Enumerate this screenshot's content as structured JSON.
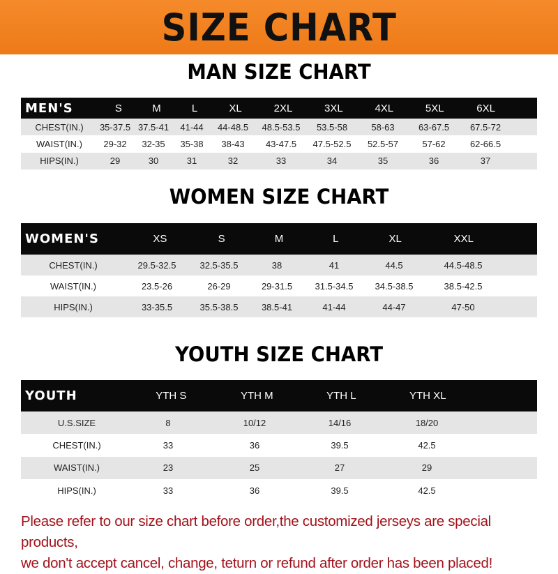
{
  "banner_title": "SIZE CHART",
  "tables": [
    {
      "title": "MAN SIZE CHART",
      "header": [
        "MEN'S",
        "S",
        "M",
        "L",
        "XL",
        "2XL",
        "3XL",
        "4XL",
        "5XL",
        "6XL"
      ],
      "rows": [
        [
          "CHEST(IN.)",
          "35-37.5",
          "37.5-41",
          "41-44",
          "44-48.5",
          "48.5-53.5",
          "53.5-58",
          "58-63",
          "63-67.5",
          "67.5-72"
        ],
        [
          "WAIST(IN.)",
          "29-32",
          "32-35",
          "35-38",
          "38-43",
          "43-47.5",
          "47.5-52.5",
          "52.5-57",
          "57-62",
          "62-66.5"
        ],
        [
          "HIPS(IN.)",
          "29",
          "30",
          "31",
          "32",
          "33",
          "34",
          "35",
          "36",
          "37"
        ]
      ]
    },
    {
      "title": "WOMEN SIZE CHART",
      "header": [
        "WOMEN'S",
        "XS",
        "S",
        "M",
        "L",
        "XL",
        "XXL"
      ],
      "rows": [
        [
          "CHEST(IN.)",
          "29.5-32.5",
          "32.5-35.5",
          "38",
          "41",
          "44.5",
          "44.5-48.5"
        ],
        [
          "WAIST(IN.)",
          "23.5-26",
          "26-29",
          "29-31.5",
          "31.5-34.5",
          "34.5-38.5",
          "38.5-42.5"
        ],
        [
          "HIPS(IN.)",
          "33-35.5",
          "35.5-38.5",
          "38.5-41",
          "41-44",
          "44-47",
          "47-50"
        ]
      ]
    },
    {
      "title": "YOUTH SIZE CHART",
      "header": [
        "YOUTH",
        "YTH S",
        "YTH M",
        "YTH L",
        "YTH XL"
      ],
      "rows": [
        [
          "U.S.SIZE",
          "8",
          "10/12",
          "14/16",
          "18/20"
        ],
        [
          "CHEST(IN.)",
          "33",
          "36",
          "39.5",
          "42.5"
        ],
        [
          "WAIST(IN.)",
          "23",
          "25",
          "27",
          "29"
        ],
        [
          "HIPS(IN.)",
          "33",
          "36",
          "39.5",
          "42.5"
        ]
      ]
    }
  ],
  "notice": {
    "line1": "Please refer to our size chart before order,the customized jerseys are special products,",
    "line2": "we don't accept cancel, change, teturn or refund after order has been placed!",
    "color": "#a3121b"
  },
  "colors": {
    "banner": "#f07f1a",
    "header_row": "#0a0a0a",
    "stripe": "#e5e5e5"
  }
}
